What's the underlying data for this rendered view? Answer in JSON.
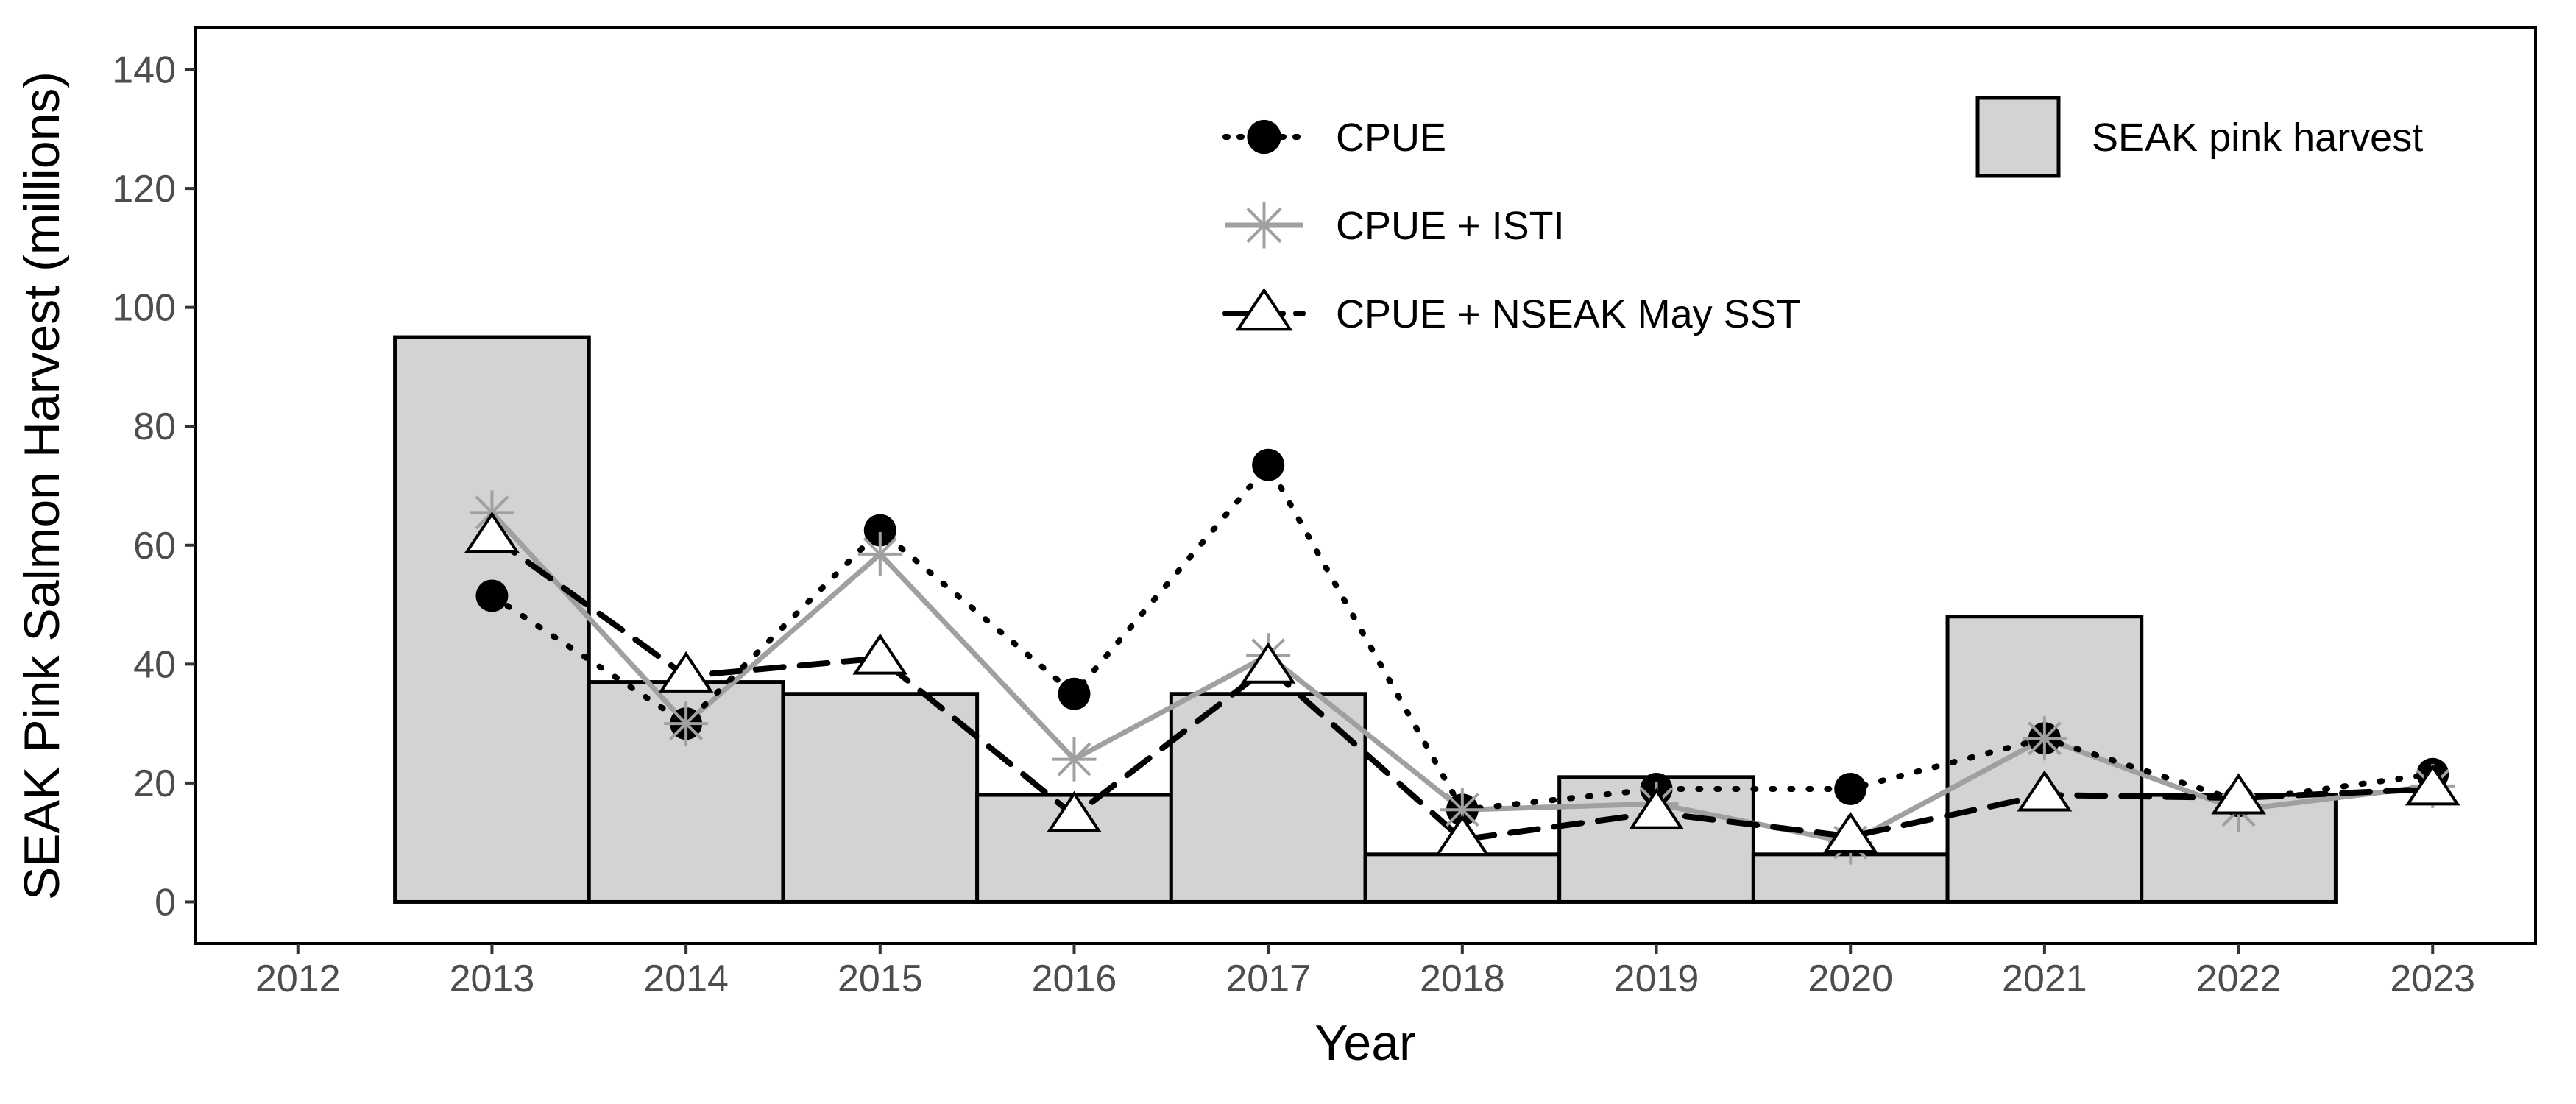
{
  "chart_data": {
    "type": "bar+line",
    "title": "",
    "xlabel": "Year",
    "ylabel": "SEAK Pink Salmon Harvest (millions)",
    "xlim": [
      2012,
      2023
    ],
    "ylim": [
      0,
      140
    ],
    "x_ticks": [
      2012,
      2013,
      2014,
      2015,
      2016,
      2017,
      2018,
      2019,
      2020,
      2021,
      2022,
      2023
    ],
    "y_ticks": [
      0,
      20,
      40,
      60,
      80,
      100,
      120,
      140
    ],
    "grid": false,
    "bars": {
      "name": "SEAK pink harvest",
      "fill": "#d3d3d3",
      "x": [
        2013,
        2014,
        2015,
        2016,
        2017,
        2018,
        2019,
        2020,
        2021,
        2022
      ],
      "values": [
        95,
        37,
        35,
        18,
        35,
        8,
        21,
        8,
        48,
        18
      ]
    },
    "series": [
      {
        "name": "CPUE",
        "color": "#000000",
        "line": "dotted",
        "marker": "filled-circle",
        "x": [
          2013,
          2014,
          2015,
          2016,
          2017,
          2018,
          2019,
          2020,
          2021,
          2022,
          2023
        ],
        "values": [
          51.5,
          30,
          62.5,
          35,
          73.5,
          15.5,
          19,
          19,
          27.5,
          17,
          21.5
        ]
      },
      {
        "name": "CPUE + ISTI",
        "color": "#a0a0a0",
        "line": "solid",
        "marker": "asterisk",
        "x": [
          2013,
          2014,
          2015,
          2016,
          2017,
          2018,
          2019,
          2020,
          2021,
          2022,
          2023
        ],
        "values": [
          65.5,
          30,
          58.5,
          24,
          41.5,
          15.5,
          16.5,
          10,
          27.5,
          15.5,
          19.5
        ]
      },
      {
        "name": "CPUE + NSEAK May SST",
        "color": "#000000",
        "line": "dashed",
        "marker": "open-triangle",
        "x": [
          2013,
          2014,
          2015,
          2016,
          2017,
          2018,
          2019,
          2020,
          2021,
          2022,
          2023
        ],
        "values": [
          61.5,
          38,
          41,
          14.5,
          39.5,
          10.5,
          15,
          11,
          18,
          17.5,
          19
        ]
      }
    ],
    "legend": {
      "lines_placement": "top-center",
      "bars_placement": "top-right"
    }
  }
}
